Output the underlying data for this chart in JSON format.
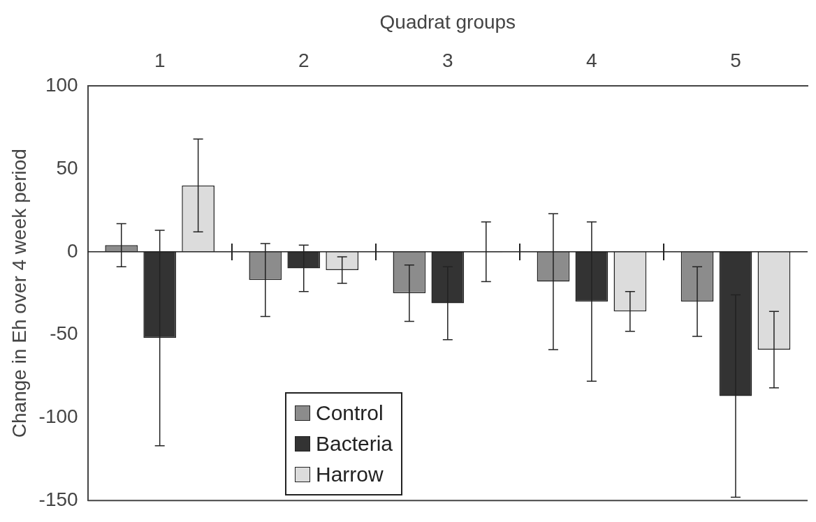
{
  "chart_data": {
    "type": "bar",
    "xlabel": "Quadrat groups",
    "ylabel": "Change in Eh over 4 week period",
    "categories": [
      "1",
      "2",
      "3",
      "4",
      "5"
    ],
    "series": [
      {
        "name": "Control",
        "color": "#8c8c8c",
        "values": [
          4,
          -17,
          -25,
          -18,
          -30
        ],
        "errors": [
          13,
          22,
          17,
          41,
          21
        ]
      },
      {
        "name": "Bacteria",
        "color": "#333333",
        "values": [
          -52,
          -10,
          -31,
          -30,
          -87
        ],
        "errors": [
          65,
          14,
          22,
          48,
          61
        ]
      },
      {
        "name": "Harrow",
        "color": "#dcdcdc",
        "values": [
          40,
          -11,
          0,
          -36,
          -59
        ],
        "errors": [
          28,
          8,
          18,
          12,
          23
        ]
      }
    ],
    "ylim": [
      -150,
      100
    ],
    "yticks": [
      -150,
      -100,
      -50,
      0,
      50,
      100
    ],
    "grid": false,
    "ref_lines": [
      {
        "axis": "y",
        "value": 0
      }
    ],
    "legend": "bottom left"
  }
}
